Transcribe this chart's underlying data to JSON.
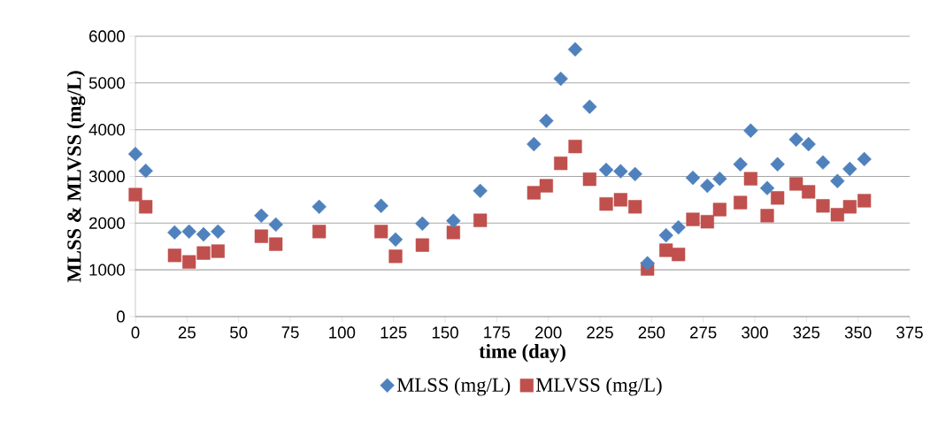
{
  "chart_data": {
    "type": "scatter",
    "xlabel": "time (day)",
    "ylabel": "MLSS & MLVSS (mg/L)",
    "x": [
      0,
      5,
      19,
      26,
      33,
      40,
      61,
      68,
      89,
      119,
      126,
      139,
      154,
      167,
      193,
      199,
      206,
      213,
      220,
      228,
      235,
      242,
      248,
      257,
      263,
      270,
      277,
      283,
      293,
      298,
      306,
      311,
      320,
      326,
      333,
      340,
      346,
      353
    ],
    "series": [
      {
        "name": "MLSS (mg/L)",
        "color": "#4f81bd",
        "marker": "diamond",
        "values": [
          3480,
          3120,
          1800,
          1820,
          1760,
          1820,
          2160,
          1970,
          2350,
          2370,
          1650,
          1990,
          2050,
          2690,
          3690,
          4190,
          5090,
          5720,
          4490,
          3140,
          3110,
          3050,
          1140,
          1740,
          1910,
          2970,
          2800,
          2950,
          3260,
          3980,
          2750,
          3260,
          3790,
          3690,
          3300,
          2900,
          3160,
          3370
        ]
      },
      {
        "name": "MLVSS (mg/L)",
        "color": "#c0504d",
        "marker": "square",
        "values": [
          2610,
          2350,
          1310,
          1170,
          1360,
          1400,
          1720,
          1550,
          1820,
          1820,
          1290,
          1530,
          1800,
          2060,
          2650,
          2800,
          3280,
          3640,
          2940,
          2410,
          2500,
          2350,
          1020,
          1420,
          1330,
          2080,
          2030,
          2290,
          2440,
          2950,
          2160,
          2540,
          2840,
          2670,
          2370,
          2180,
          2350,
          2480
        ]
      }
    ],
    "xlim": [
      0,
      375
    ],
    "xticks": [
      0,
      25,
      50,
      75,
      100,
      125,
      150,
      175,
      200,
      225,
      250,
      275,
      300,
      325,
      350,
      375
    ],
    "ylim": [
      0,
      6000
    ],
    "yticks": [
      0,
      1000,
      2000,
      3000,
      4000,
      5000,
      6000
    ],
    "grid": "y",
    "legend": "bottom"
  }
}
